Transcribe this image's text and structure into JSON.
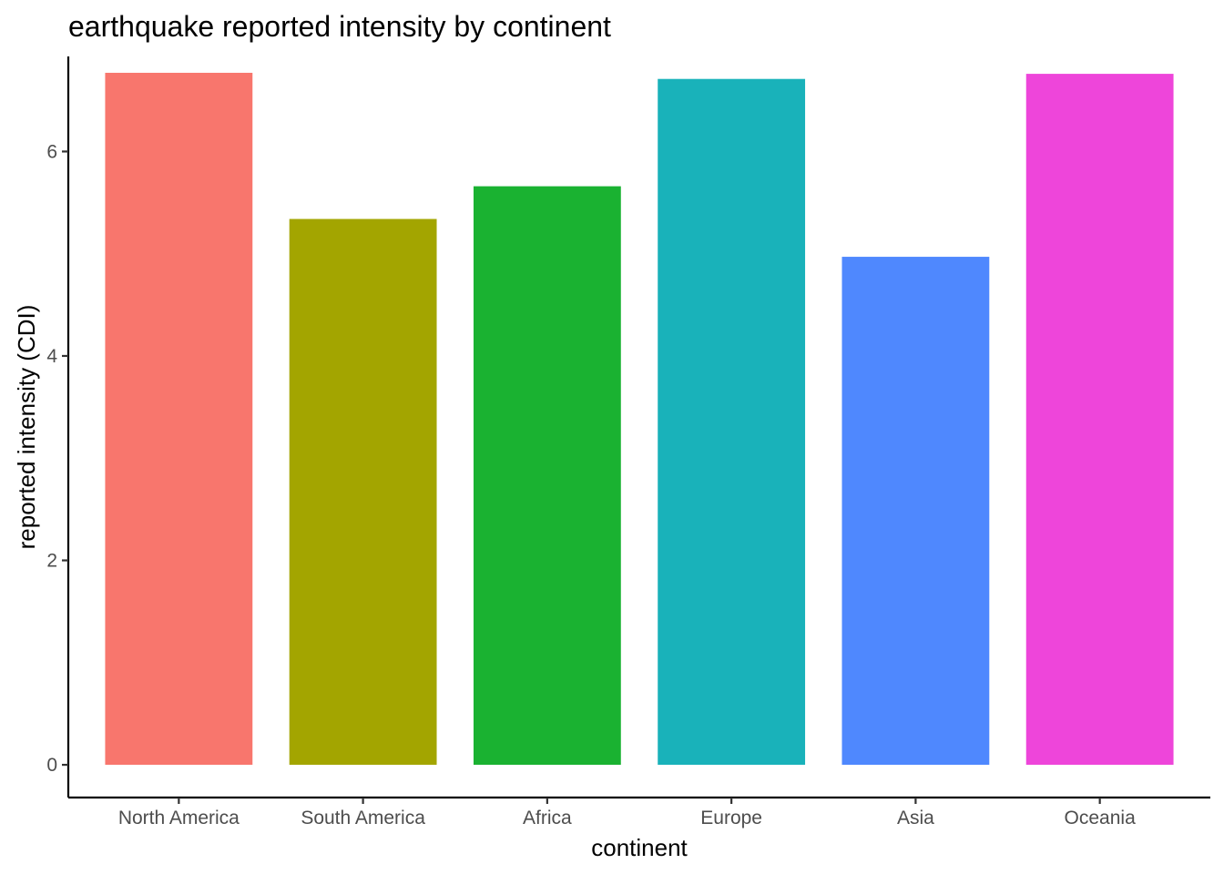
{
  "chart_data": {
    "type": "bar",
    "title": "earthquake reported intensity by continent",
    "xlabel": "continent",
    "ylabel": "reported intensity (CDI)",
    "categories": [
      "North America",
      "South America",
      "Africa",
      "Europe",
      "Asia",
      "Oceania"
    ],
    "values": [
      6.77,
      5.34,
      5.66,
      6.71,
      4.97,
      6.76
    ],
    "colors": [
      "#F8766D",
      "#A3A500",
      "#1AB231",
      "#19B2BA",
      "#4F88FE",
      "#EE45DA"
    ],
    "ylim": [
      -0.32,
      6.93
    ],
    "yticks": [
      0,
      2,
      4,
      6
    ],
    "ytick_labels": [
      "0",
      "2",
      "4",
      "6"
    ],
    "grid": false,
    "legend": "none"
  }
}
